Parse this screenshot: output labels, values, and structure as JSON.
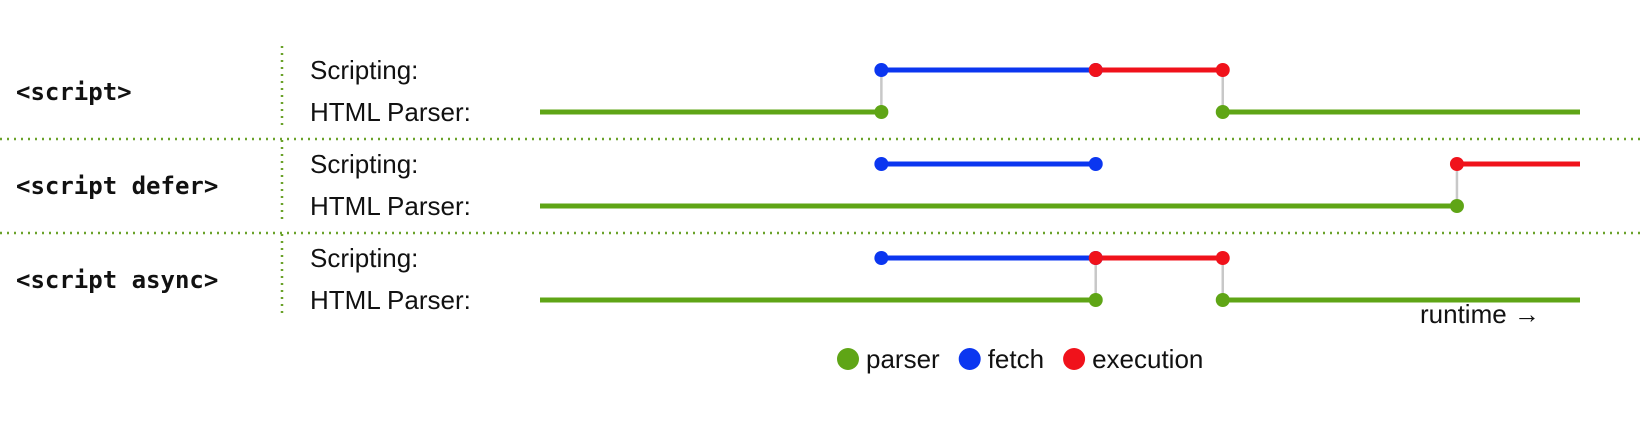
{
  "colors": {
    "parser": "#5fa516",
    "fetch": "#0b36f0",
    "execution": "#f0121b",
    "connector": "#c8c8c8",
    "separator": "#6aa22a"
  },
  "row_labels": {
    "scripting": "Scripting:",
    "parser": "HTML Parser:"
  },
  "sections": [
    {
      "tag": "<script>",
      "events": [
        {
          "lane": "parser",
          "phase": "parser",
          "start": 0,
          "end": 43
        },
        {
          "lane": "scripting",
          "phase": "fetch",
          "start": 43,
          "end": 70
        },
        {
          "lane": "scripting",
          "phase": "execution",
          "start": 70,
          "end": 86
        },
        {
          "lane": "parser",
          "phase": "parser",
          "start": 86,
          "end": 131
        }
      ],
      "connectors": [
        43,
        86
      ]
    },
    {
      "tag": "<script defer>",
      "events": [
        {
          "lane": "scripting",
          "phase": "fetch",
          "start": 43,
          "end": 70
        },
        {
          "lane": "parser",
          "phase": "parser",
          "start": 0,
          "end": 115.5
        },
        {
          "lane": "scripting",
          "phase": "execution",
          "start": 115.5,
          "end": 131
        }
      ],
      "connectors": [
        115.5
      ]
    },
    {
      "tag": "<script async>",
      "events": [
        {
          "lane": "scripting",
          "phase": "fetch",
          "start": 43,
          "end": 70
        },
        {
          "lane": "parser",
          "phase": "parser",
          "start": 0,
          "end": 70
        },
        {
          "lane": "scripting",
          "phase": "execution",
          "start": 70,
          "end": 86
        },
        {
          "lane": "parser",
          "phase": "parser",
          "start": 86,
          "end": 131
        }
      ],
      "connectors": [
        70,
        86
      ]
    }
  ],
  "axis": {
    "label": "runtime →"
  },
  "legend": [
    {
      "key": "parser",
      "label": "parser"
    },
    {
      "key": "fetch",
      "label": "fetch"
    },
    {
      "key": "execution",
      "label": "execution"
    }
  ]
}
